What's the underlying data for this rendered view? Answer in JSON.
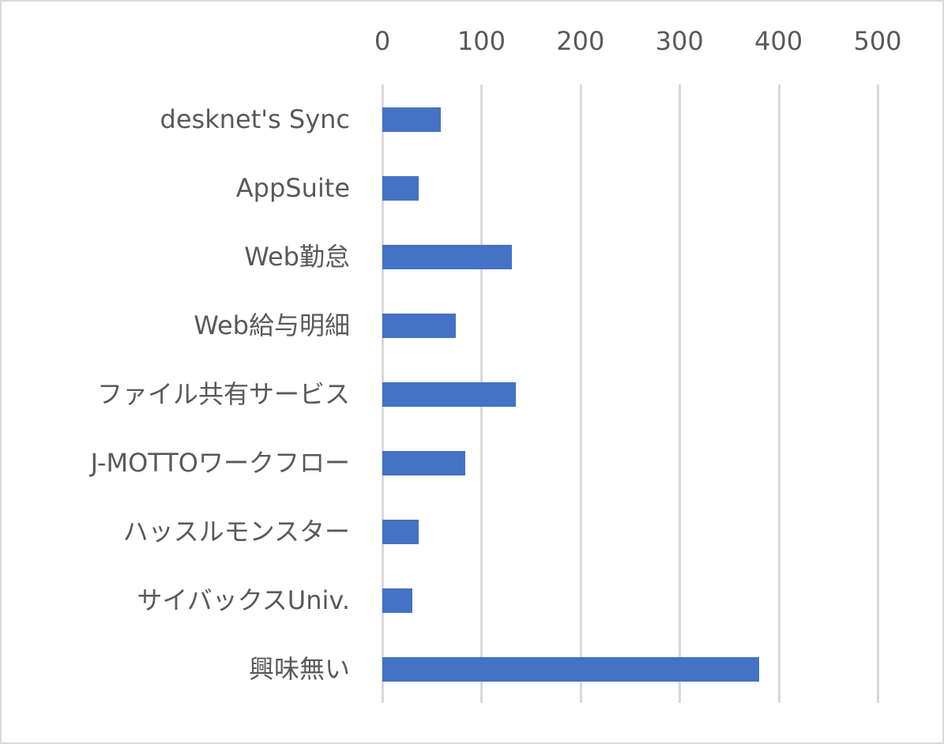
{
  "chart_data": {
    "type": "bar",
    "orientation": "horizontal",
    "title": "",
    "xlabel": "",
    "ylabel": "",
    "categories": [
      "desknet's Sync",
      "AppSuite",
      "Web勤怠",
      "Web給与明細",
      "ファイル共有サービス",
      "J-MOTTOワークフロー",
      "ハッスルモンスター",
      "サイバックスUniv.",
      "興味無い"
    ],
    "values": [
      59,
      37,
      131,
      74,
      135,
      84,
      37,
      30,
      380
    ],
    "xlim": [
      0,
      500
    ],
    "x_ticks": [
      "0",
      "100",
      "200",
      "300",
      "400",
      "500"
    ],
    "x_axis_position": "top",
    "grid": true,
    "legend": null,
    "bar_color": "#4472c4"
  },
  "colors": {
    "bar": "#4472c4",
    "grid": "#d9d9d9",
    "text": "#595959",
    "border": "#d9d9d9"
  }
}
